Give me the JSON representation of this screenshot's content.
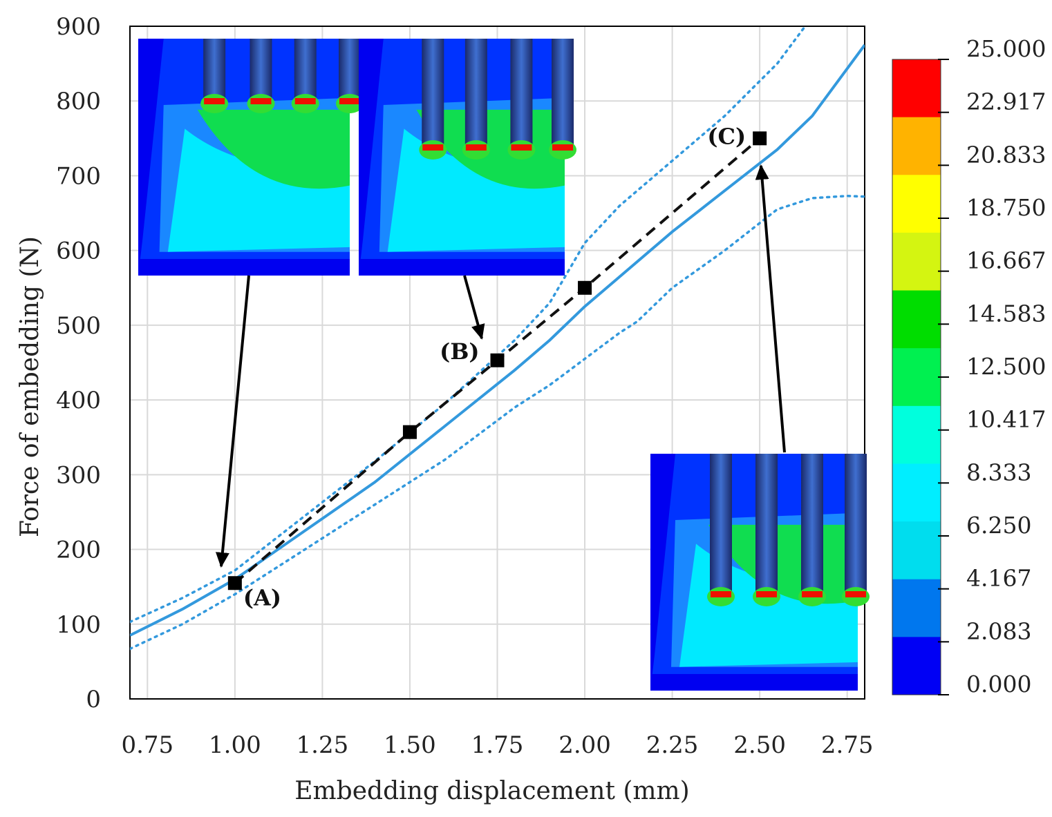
{
  "chart_data": {
    "type": "line",
    "xlabel": "Embedding displacement (mm)",
    "ylabel": "Force of embedding (N)",
    "xlim": [
      0.7,
      2.8
    ],
    "ylim": [
      0,
      900
    ],
    "x_ticks": [
      "0.75",
      "1.00",
      "1.25",
      "1.50",
      "1.75",
      "2.00",
      "2.25",
      "2.50",
      "2.75"
    ],
    "x_tick_values": [
      0.75,
      1.0,
      1.25,
      1.5,
      1.75,
      2.0,
      2.25,
      2.5,
      2.75
    ],
    "y_ticks": [
      "0",
      "100",
      "200",
      "300",
      "400",
      "500",
      "600",
      "700",
      "800",
      "900"
    ],
    "y_tick_values": [
      0,
      100,
      200,
      300,
      400,
      500,
      600,
      700,
      800,
      900
    ],
    "grid": true,
    "series": [
      {
        "style": "solid",
        "color": "#3399dd",
        "x": [
          0.7,
          0.85,
          1.0,
          1.2,
          1.4,
          1.6,
          1.8,
          1.9,
          2.0,
          2.1,
          2.25,
          2.4,
          2.55,
          2.65,
          2.8
        ],
        "y": [
          85,
          120,
          160,
          225,
          290,
          365,
          440,
          480,
          525,
          565,
          625,
          680,
          735,
          780,
          875
        ]
      },
      {
        "style": "dotted",
        "color": "#3399dd",
        "x": [
          0.7,
          0.85,
          1.0,
          1.2,
          1.4,
          1.6,
          1.8,
          1.9,
          1.95,
          2.0,
          2.1,
          2.25,
          2.4,
          2.55,
          2.63
        ],
        "y": [
          103,
          135,
          172,
          245,
          318,
          395,
          480,
          530,
          570,
          610,
          660,
          720,
          780,
          850,
          900
        ]
      },
      {
        "style": "dotted",
        "color": "#3399dd",
        "x": [
          0.7,
          0.85,
          1.0,
          1.2,
          1.4,
          1.6,
          1.8,
          1.9,
          2.0,
          2.1,
          2.15,
          2.25,
          2.4,
          2.55,
          2.65,
          2.75,
          2.8
        ],
        "y": [
          67,
          100,
          140,
          200,
          260,
          320,
          390,
          420,
          455,
          490,
          505,
          550,
          600,
          655,
          670,
          673,
          672
        ]
      },
      {
        "style": "dashed",
        "color": "#111111",
        "markers": true,
        "x": [
          1.0,
          1.5,
          1.75,
          2.0,
          2.5
        ],
        "y": [
          155,
          357,
          453,
          550,
          750
        ]
      }
    ],
    "point_labels": [
      {
        "text": "(A)",
        "x": 1.0,
        "y": 155
      },
      {
        "text": "(B)",
        "x": 1.75,
        "y": 453
      },
      {
        "text": "(C)",
        "x": 2.5,
        "y": 750
      }
    ],
    "colorbar": {
      "labels": [
        "25.000",
        "22.917",
        "20.833",
        "18.750",
        "16.667",
        "14.583",
        "12.500",
        "10.417",
        "8.333",
        "6.250",
        "4.167",
        "2.083",
        "0.000"
      ],
      "colors": [
        "#ff0000",
        "#ffb300",
        "#ffff00",
        "#d4f511",
        "#00dd00",
        "#00f050",
        "#00ffdd",
        "#00eeff",
        "#00ddee",
        "#0077ee",
        "#0000f5"
      ]
    },
    "legend": "none"
  }
}
